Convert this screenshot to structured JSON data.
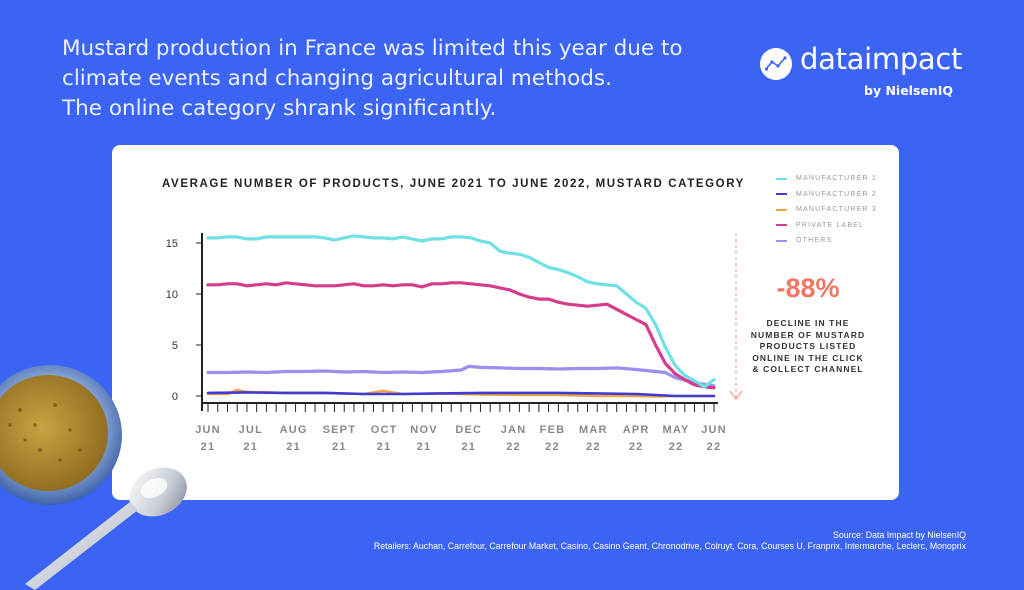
{
  "headline": {
    "line1": "Mustard production in France was limited this year due to",
    "line2": "climate events and changing agricultural methods.",
    "line3": "The online category shrank significantly."
  },
  "logo": {
    "word": "dataimpact",
    "sub": "by NielsenIQ"
  },
  "stat": {
    "value": "-88%",
    "lines": [
      "DECLINE IN THE",
      "NUMBER OF MUSTARD",
      "PRODUCTS LISTED",
      "ONLINE IN THE CLICK",
      "& COLLECT CHANNEL"
    ]
  },
  "source": {
    "line1": "Source: Data Impact by NielsenIQ",
    "line2": "Retailers: Auchan, Carrefour, Carrefour Market, Casino, Casino Geant, Chronodrive, Colruyt, Cora, Courses U, Franprix, Intermarche, Leclerc, Monoprix"
  },
  "colors": {
    "background": "#3b63f4",
    "card": "#ffffff",
    "stat": "#f47565",
    "arrow": "#f4a59b"
  },
  "chart_data": {
    "type": "line",
    "title": "AVERAGE NUMBER OF PRODUCTS, JUNE 2021 TO JUNE 2022, MUSTARD CATEGORY",
    "xlabel": "",
    "ylabel": "",
    "ylim": [
      0,
      17
    ],
    "yticks": [
      0,
      5,
      10,
      15
    ],
    "grid": false,
    "legend_position": "top-right",
    "x_range": [
      0,
      52
    ],
    "xtick_labels": [
      {
        "x": 0,
        "line1": "JUN",
        "line2": "21"
      },
      {
        "x": 4.4,
        "line1": "JUL",
        "line2": "21"
      },
      {
        "x": 8.8,
        "line1": "AUG",
        "line2": "21"
      },
      {
        "x": 13.5,
        "line1": "SEPT",
        "line2": "21"
      },
      {
        "x": 18.1,
        "line1": "OCT",
        "line2": "21"
      },
      {
        "x": 22.2,
        "line1": "NOV",
        "line2": "21"
      },
      {
        "x": 26.8,
        "line1": "DEC",
        "line2": "21"
      },
      {
        "x": 31.4,
        "line1": "JAN",
        "line2": "22"
      },
      {
        "x": 35.4,
        "line1": "FEB",
        "line2": "22"
      },
      {
        "x": 39.6,
        "line1": "MAR",
        "line2": "22"
      },
      {
        "x": 44.0,
        "line1": "APR",
        "line2": "22"
      },
      {
        "x": 48.1,
        "line1": "MAY",
        "line2": "22"
      },
      {
        "x": 52,
        "line1": "JUN",
        "line2": "22"
      }
    ],
    "series": [
      {
        "name": "MANUFACTURER 1",
        "color": "#6fe0e6",
        "x": [
          0,
          1,
          2,
          3,
          4,
          5,
          6,
          7,
          8,
          9,
          10,
          11,
          12,
          13,
          14,
          15,
          16,
          17,
          18,
          19,
          20,
          21,
          22,
          23,
          24,
          25,
          26,
          27,
          28,
          29,
          30,
          31,
          32,
          33,
          34,
          35,
          36,
          37,
          38,
          39,
          40,
          41,
          42,
          43,
          44,
          45,
          46,
          47,
          48,
          49,
          50,
          51,
          52
        ],
        "values": [
          15.5,
          15.5,
          15.6,
          15.6,
          15.4,
          15.4,
          15.6,
          15.6,
          15.6,
          15.6,
          15.6,
          15.6,
          15.5,
          15.3,
          15.5,
          15.7,
          15.6,
          15.5,
          15.5,
          15.4,
          15.6,
          15.4,
          15.2,
          15.4,
          15.4,
          15.6,
          15.6,
          15.5,
          15.2,
          15.0,
          14.2,
          14.0,
          13.9,
          13.6,
          13.1,
          12.6,
          12.4,
          12.1,
          11.7,
          11.2,
          11.0,
          10.9,
          10.8,
          10.0,
          9.2,
          8.6,
          7.0,
          4.8,
          3.0,
          2.0,
          1.5,
          0.9,
          1.6
        ]
      },
      {
        "name": "MANUFACTURER 2",
        "color": "#3d3ad6",
        "x": [
          0,
          4,
          8,
          12,
          16,
          20,
          24,
          28,
          32,
          36,
          40,
          44,
          48,
          52
        ],
        "values": [
          0.3,
          0.35,
          0.3,
          0.3,
          0.2,
          0.2,
          0.25,
          0.3,
          0.3,
          0.3,
          0.25,
          0.2,
          0.0,
          0.0
        ]
      },
      {
        "name": "MANUFACTURER 3",
        "color": "#f0a640",
        "x": [
          0,
          2,
          3,
          4,
          8,
          12,
          16,
          18,
          20,
          24,
          28,
          32,
          36,
          40,
          44,
          46,
          48,
          52
        ],
        "values": [
          0.2,
          0.2,
          0.6,
          0.4,
          0.3,
          0.3,
          0.2,
          0.5,
          0.2,
          0.25,
          0.15,
          0.1,
          0.1,
          0.0,
          0.0,
          -0.05,
          0.0,
          0.0
        ]
      },
      {
        "name": "PRIVATE LABEL",
        "color": "#d63c8c",
        "x": [
          0,
          1,
          2,
          3,
          4,
          5,
          6,
          7,
          8,
          9,
          10,
          11,
          12,
          13,
          14,
          15,
          16,
          17,
          18,
          19,
          20,
          21,
          22,
          23,
          24,
          25,
          26,
          27,
          28,
          29,
          30,
          31,
          32,
          33,
          34,
          35,
          36,
          37,
          38,
          39,
          40,
          41,
          42,
          43,
          44,
          45,
          46,
          47,
          48,
          49,
          50,
          51,
          52
        ],
        "values": [
          10.9,
          10.9,
          11.0,
          11.0,
          10.8,
          10.9,
          11.0,
          10.9,
          11.1,
          11.0,
          10.9,
          10.8,
          10.8,
          10.8,
          10.9,
          11.0,
          10.8,
          10.8,
          10.9,
          10.8,
          10.9,
          10.9,
          10.7,
          11.0,
          11.0,
          11.1,
          11.1,
          11.0,
          10.9,
          10.8,
          10.6,
          10.4,
          10.0,
          9.7,
          9.5,
          9.5,
          9.2,
          9.0,
          8.9,
          8.8,
          8.9,
          9.0,
          8.5,
          8.0,
          7.5,
          7.0,
          5.0,
          3.2,
          2.2,
          1.6,
          1.1,
          0.9,
          0.8
        ]
      },
      {
        "name": "OTHERS",
        "color": "#9a8ef0",
        "x": [
          0,
          2,
          4,
          6,
          8,
          10,
          12,
          14,
          16,
          18,
          20,
          22,
          24,
          26,
          26.8,
          28,
          30,
          32,
          34,
          36,
          38,
          40,
          42,
          44,
          46,
          47,
          48,
          50,
          52
        ],
        "values": [
          2.3,
          2.3,
          2.35,
          2.3,
          2.4,
          2.4,
          2.45,
          2.35,
          2.4,
          2.3,
          2.35,
          2.3,
          2.4,
          2.55,
          2.9,
          2.8,
          2.75,
          2.7,
          2.7,
          2.65,
          2.7,
          2.7,
          2.75,
          2.6,
          2.4,
          2.3,
          1.8,
          1.3,
          1.0
        ]
      }
    ]
  }
}
